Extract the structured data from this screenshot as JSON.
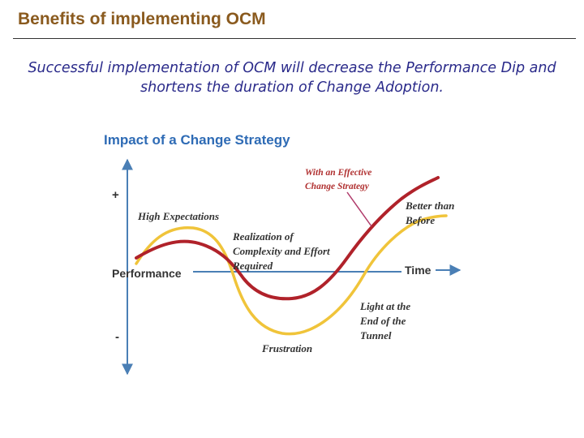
{
  "slide": {
    "title": "Benefits of implementing OCM",
    "subtitle": "Successful implementation of OCM will decrease the Performance Dip and shortens the duration of Change Adoption."
  },
  "diagram": {
    "title": "Impact of a Change Strategy",
    "axis": {
      "plus": "+",
      "minus": "-",
      "performance": "Performance",
      "time": "Time"
    },
    "labels": {
      "high_expectations": "High Expectations",
      "realization_line1": "Realization of",
      "realization_line2": "Complexity and Effort",
      "realization_line3": "Required",
      "effective_line1": "With an Effective",
      "effective_line2": "Change Strategy",
      "better_line1": "Better than",
      "better_line2": "Before",
      "light_line1": "Light at the",
      "light_line2": "End of the",
      "light_line3": "Tunnel",
      "frustration": "Frustration"
    },
    "colors": {
      "axis": "#4a7fb5",
      "yellow_curve": "#f0c43a",
      "red_curve": "#b0222a",
      "pointer": "#b03a6a",
      "title": "#2e6bb5"
    }
  }
}
